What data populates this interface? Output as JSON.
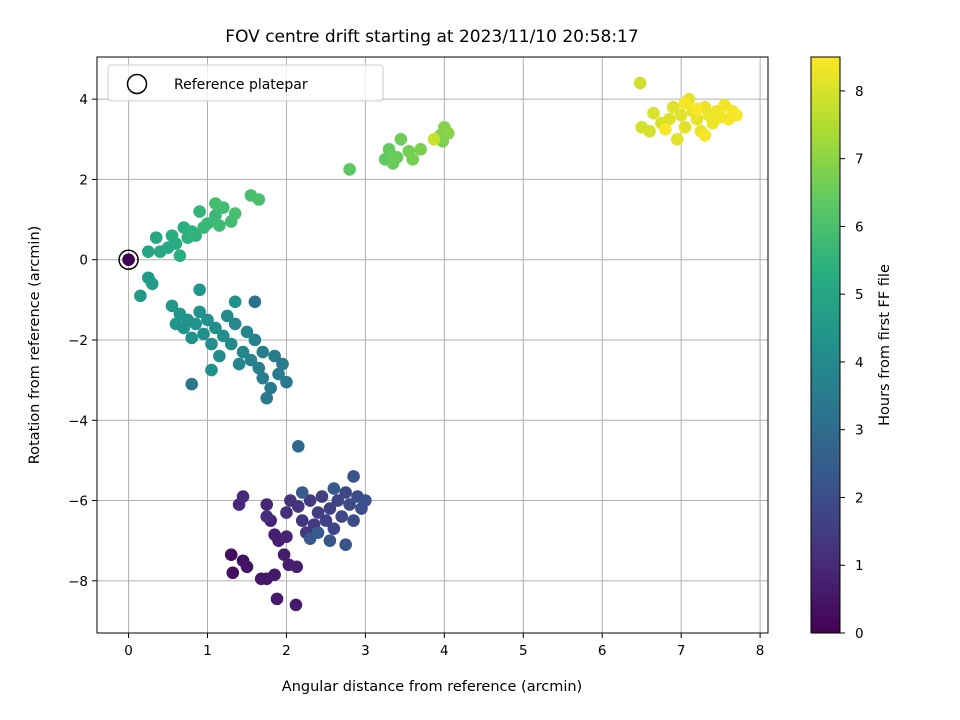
{
  "chart_data": {
    "type": "scatter",
    "title": "FOV centre drift starting at 2023/11/10 20:58:17",
    "xlabel": "Angular distance from reference (arcmin)",
    "ylabel": "Rotation from reference (arcmin)",
    "xlim": [
      -0.4,
      8.1
    ],
    "ylim": [
      -9.3,
      5.05
    ],
    "xticks": [
      0,
      1,
      2,
      3,
      4,
      5,
      6,
      7,
      8
    ],
    "yticks": [
      -8,
      -6,
      -4,
      -2,
      0,
      2,
      4
    ],
    "grid": true,
    "legend": {
      "position": "top-left",
      "entries": [
        "Reference platepar"
      ]
    },
    "reference_point": {
      "x": 0,
      "y": 0,
      "label": "Reference platepar"
    },
    "colorbar": {
      "label": "Hours from first FF file",
      "colormap": "viridis",
      "range": [
        0,
        8.5
      ],
      "ticks": [
        0,
        1,
        2,
        3,
        4,
        5,
        6,
        7,
        8
      ]
    },
    "points": [
      {
        "x": 0.0,
        "y": 0.0,
        "c": 0.0
      },
      {
        "x": 1.3,
        "y": -7.35,
        "c": 0.3
      },
      {
        "x": 1.32,
        "y": -7.8,
        "c": 0.35
      },
      {
        "x": 1.45,
        "y": -7.5,
        "c": 0.4
      },
      {
        "x": 1.5,
        "y": -7.65,
        "c": 0.45
      },
      {
        "x": 1.68,
        "y": -7.95,
        "c": 0.5
      },
      {
        "x": 1.75,
        "y": -7.95,
        "c": 0.52
      },
      {
        "x": 1.85,
        "y": -7.85,
        "c": 0.55
      },
      {
        "x": 1.88,
        "y": -8.45,
        "c": 0.58
      },
      {
        "x": 2.12,
        "y": -8.6,
        "c": 0.6
      },
      {
        "x": 1.97,
        "y": -7.35,
        "c": 0.65
      },
      {
        "x": 2.03,
        "y": -7.6,
        "c": 0.68
      },
      {
        "x": 2.13,
        "y": -7.65,
        "c": 0.7
      },
      {
        "x": 1.85,
        "y": -6.85,
        "c": 0.75
      },
      {
        "x": 1.9,
        "y": -7.0,
        "c": 0.78
      },
      {
        "x": 1.8,
        "y": -6.5,
        "c": 0.8
      },
      {
        "x": 2.0,
        "y": -6.9,
        "c": 0.85
      },
      {
        "x": 1.75,
        "y": -6.1,
        "c": 0.9
      },
      {
        "x": 1.4,
        "y": -6.1,
        "c": 1.0
      },
      {
        "x": 1.45,
        "y": -5.9,
        "c": 1.05
      },
      {
        "x": 1.75,
        "y": -6.4,
        "c": 1.1
      },
      {
        "x": 2.0,
        "y": -6.3,
        "c": 1.15
      },
      {
        "x": 2.05,
        "y": -6.0,
        "c": 1.2
      },
      {
        "x": 2.15,
        "y": -6.15,
        "c": 1.25
      },
      {
        "x": 2.2,
        "y": -6.5,
        "c": 1.3
      },
      {
        "x": 2.25,
        "y": -6.8,
        "c": 1.35
      },
      {
        "x": 2.3,
        "y": -6.0,
        "c": 1.4
      },
      {
        "x": 2.35,
        "y": -6.6,
        "c": 1.45
      },
      {
        "x": 2.4,
        "y": -6.3,
        "c": 1.5
      },
      {
        "x": 2.45,
        "y": -5.9,
        "c": 1.55
      },
      {
        "x": 2.5,
        "y": -6.5,
        "c": 1.6
      },
      {
        "x": 2.55,
        "y": -6.2,
        "c": 1.65
      },
      {
        "x": 2.6,
        "y": -6.7,
        "c": 1.7
      },
      {
        "x": 2.65,
        "y": -6.0,
        "c": 1.75
      },
      {
        "x": 2.7,
        "y": -6.4,
        "c": 1.8
      },
      {
        "x": 2.75,
        "y": -5.8,
        "c": 1.85
      },
      {
        "x": 2.8,
        "y": -6.1,
        "c": 1.9
      },
      {
        "x": 2.85,
        "y": -6.5,
        "c": 1.95
      },
      {
        "x": 2.9,
        "y": -5.9,
        "c": 2.0
      },
      {
        "x": 2.95,
        "y": -6.2,
        "c": 2.05
      },
      {
        "x": 3.0,
        "y": -6.0,
        "c": 2.1
      },
      {
        "x": 2.85,
        "y": -5.4,
        "c": 2.15
      },
      {
        "x": 2.75,
        "y": -7.1,
        "c": 2.2
      },
      {
        "x": 2.55,
        "y": -7.0,
        "c": 2.25
      },
      {
        "x": 2.3,
        "y": -6.95,
        "c": 2.3
      },
      {
        "x": 2.6,
        "y": -5.7,
        "c": 2.35
      },
      {
        "x": 2.4,
        "y": -6.8,
        "c": 2.4
      },
      {
        "x": 2.2,
        "y": -5.8,
        "c": 2.45
      },
      {
        "x": 2.15,
        "y": -4.65,
        "c": 2.9
      },
      {
        "x": 1.6,
        "y": -1.05,
        "c": 3.2
      },
      {
        "x": 0.8,
        "y": -3.1,
        "c": 3.3
      },
      {
        "x": 1.75,
        "y": -3.45,
        "c": 3.35
      },
      {
        "x": 1.8,
        "y": -3.2,
        "c": 3.4
      },
      {
        "x": 2.0,
        "y": -3.05,
        "c": 3.45
      },
      {
        "x": 1.95,
        "y": -2.6,
        "c": 3.5
      },
      {
        "x": 1.85,
        "y": -2.4,
        "c": 3.55
      },
      {
        "x": 1.7,
        "y": -2.3,
        "c": 3.6
      },
      {
        "x": 1.65,
        "y": -2.7,
        "c": 3.65
      },
      {
        "x": 1.6,
        "y": -2.0,
        "c": 3.7
      },
      {
        "x": 1.55,
        "y": -2.5,
        "c": 3.75
      },
      {
        "x": 1.5,
        "y": -1.8,
        "c": 3.8
      },
      {
        "x": 1.45,
        "y": -2.3,
        "c": 3.85
      },
      {
        "x": 1.4,
        "y": -2.6,
        "c": 3.9
      },
      {
        "x": 1.35,
        "y": -1.6,
        "c": 3.95
      },
      {
        "x": 1.3,
        "y": -2.1,
        "c": 4.0
      },
      {
        "x": 1.25,
        "y": -1.4,
        "c": 4.05
      },
      {
        "x": 1.2,
        "y": -1.9,
        "c": 4.1
      },
      {
        "x": 1.15,
        "y": -2.4,
        "c": 4.12
      },
      {
        "x": 1.1,
        "y": -1.7,
        "c": 4.15
      },
      {
        "x": 1.05,
        "y": -2.1,
        "c": 4.18
      },
      {
        "x": 1.0,
        "y": -1.5,
        "c": 4.2
      },
      {
        "x": 0.95,
        "y": -1.85,
        "c": 4.22
      },
      {
        "x": 0.9,
        "y": -1.3,
        "c": 4.25
      },
      {
        "x": 0.85,
        "y": -1.6,
        "c": 4.28
      },
      {
        "x": 0.8,
        "y": -1.95,
        "c": 4.3
      },
      {
        "x": 0.75,
        "y": -1.5,
        "c": 4.32
      },
      {
        "x": 0.7,
        "y": -1.7,
        "c": 4.35
      },
      {
        "x": 0.65,
        "y": -1.35,
        "c": 4.38
      },
      {
        "x": 0.6,
        "y": -1.6,
        "c": 4.4
      },
      {
        "x": 0.55,
        "y": -1.15,
        "c": 4.42
      },
      {
        "x": 0.9,
        "y": -0.75,
        "c": 4.45
      },
      {
        "x": 1.05,
        "y": -2.75,
        "c": 4.3
      },
      {
        "x": 1.35,
        "y": -1.05,
        "c": 4.25
      },
      {
        "x": 1.7,
        "y": -2.95,
        "c": 3.6
      },
      {
        "x": 1.9,
        "y": -2.85,
        "c": 3.5
      },
      {
        "x": 0.15,
        "y": -0.9,
        "c": 4.5
      },
      {
        "x": 0.25,
        "y": -0.45,
        "c": 4.55
      },
      {
        "x": 0.3,
        "y": -0.6,
        "c": 4.6
      },
      {
        "x": 0.25,
        "y": 0.2,
        "c": 5.0
      },
      {
        "x": 0.35,
        "y": 0.55,
        "c": 5.05
      },
      {
        "x": 0.4,
        "y": 0.2,
        "c": 5.1
      },
      {
        "x": 0.5,
        "y": 0.3,
        "c": 5.15
      },
      {
        "x": 0.55,
        "y": 0.6,
        "c": 5.2
      },
      {
        "x": 0.6,
        "y": 0.4,
        "c": 5.25
      },
      {
        "x": 0.65,
        "y": 0.1,
        "c": 5.3
      },
      {
        "x": 0.7,
        "y": 0.8,
        "c": 5.35
      },
      {
        "x": 0.75,
        "y": 0.55,
        "c": 5.4
      },
      {
        "x": 0.8,
        "y": 0.7,
        "c": 5.45
      },
      {
        "x": 0.85,
        "y": 0.6,
        "c": 5.5
      },
      {
        "x": 0.9,
        "y": 1.2,
        "c": 5.55
      },
      {
        "x": 0.95,
        "y": 0.8,
        "c": 5.6
      },
      {
        "x": 1.0,
        "y": 0.9,
        "c": 5.65
      },
      {
        "x": 1.1,
        "y": 1.1,
        "c": 5.7
      },
      {
        "x": 1.15,
        "y": 0.85,
        "c": 5.75
      },
      {
        "x": 1.2,
        "y": 1.3,
        "c": 5.8
      },
      {
        "x": 1.3,
        "y": 0.95,
        "c": 5.85
      },
      {
        "x": 1.35,
        "y": 1.15,
        "c": 5.9
      },
      {
        "x": 1.55,
        "y": 1.6,
        "c": 5.95
      },
      {
        "x": 1.65,
        "y": 1.5,
        "c": 6.0
      },
      {
        "x": 1.1,
        "y": 1.4,
        "c": 5.9
      },
      {
        "x": 2.8,
        "y": 2.25,
        "c": 6.3
      },
      {
        "x": 3.25,
        "y": 2.5,
        "c": 6.4
      },
      {
        "x": 3.3,
        "y": 2.75,
        "c": 6.45
      },
      {
        "x": 3.4,
        "y": 2.55,
        "c": 6.5
      },
      {
        "x": 3.35,
        "y": 2.4,
        "c": 6.55
      },
      {
        "x": 3.45,
        "y": 3.0,
        "c": 6.6
      },
      {
        "x": 3.55,
        "y": 2.7,
        "c": 6.65
      },
      {
        "x": 3.6,
        "y": 2.5,
        "c": 6.7
      },
      {
        "x": 3.7,
        "y": 2.75,
        "c": 6.75
      },
      {
        "x": 3.95,
        "y": 3.1,
        "c": 6.85
      },
      {
        "x": 4.0,
        "y": 3.3,
        "c": 6.9
      },
      {
        "x": 4.05,
        "y": 3.15,
        "c": 6.95
      },
      {
        "x": 3.98,
        "y": 2.95,
        "c": 6.8
      },
      {
        "x": 3.87,
        "y": 3.0,
        "c": 7.8
      },
      {
        "x": 6.48,
        "y": 4.4,
        "c": 7.9
      },
      {
        "x": 6.5,
        "y": 3.3,
        "c": 7.95
      },
      {
        "x": 6.6,
        "y": 3.2,
        "c": 8.0
      },
      {
        "x": 6.65,
        "y": 3.65,
        "c": 8.0
      },
      {
        "x": 6.75,
        "y": 3.4,
        "c": 8.02
      },
      {
        "x": 6.85,
        "y": 3.5,
        "c": 8.05
      },
      {
        "x": 6.9,
        "y": 3.8,
        "c": 8.08
      },
      {
        "x": 6.95,
        "y": 3.0,
        "c": 8.1
      },
      {
        "x": 7.0,
        "y": 3.6,
        "c": 8.12
      },
      {
        "x": 7.05,
        "y": 3.3,
        "c": 8.14
      },
      {
        "x": 7.1,
        "y": 4.0,
        "c": 8.16
      },
      {
        "x": 7.15,
        "y": 3.7,
        "c": 8.18
      },
      {
        "x": 7.2,
        "y": 3.5,
        "c": 8.2
      },
      {
        "x": 7.25,
        "y": 3.2,
        "c": 8.22
      },
      {
        "x": 7.3,
        "y": 3.8,
        "c": 8.24
      },
      {
        "x": 7.35,
        "y": 3.6,
        "c": 8.26
      },
      {
        "x": 7.4,
        "y": 3.4,
        "c": 8.28
      },
      {
        "x": 7.45,
        "y": 3.7,
        "c": 8.3
      },
      {
        "x": 7.5,
        "y": 3.55,
        "c": 8.32
      },
      {
        "x": 7.55,
        "y": 3.85,
        "c": 8.34
      },
      {
        "x": 7.6,
        "y": 3.5,
        "c": 8.36
      },
      {
        "x": 7.65,
        "y": 3.7,
        "c": 8.38
      },
      {
        "x": 7.7,
        "y": 3.6,
        "c": 8.4
      },
      {
        "x": 7.3,
        "y": 3.1,
        "c": 8.42
      },
      {
        "x": 7.05,
        "y": 3.9,
        "c": 8.44
      },
      {
        "x": 7.2,
        "y": 3.75,
        "c": 8.46
      },
      {
        "x": 6.8,
        "y": 3.25,
        "c": 8.48
      }
    ]
  }
}
